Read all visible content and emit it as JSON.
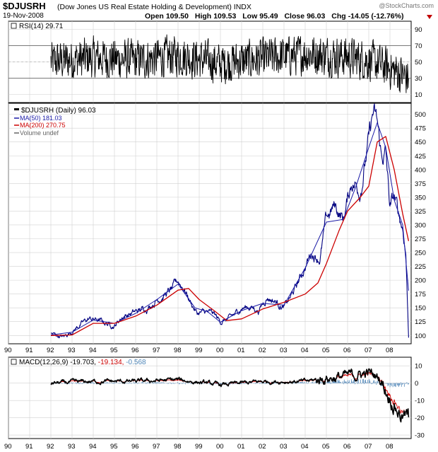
{
  "header": {
    "ticker": "$DJUSRH",
    "description": "(Dow Jones US Real Estate Holding & Development)  INDX",
    "date": "19-Nov-2008",
    "open_label": "Open",
    "open": "109.50",
    "high_label": "High",
    "high": "109.53",
    "low_label": "Low",
    "low": "95.49",
    "close_label": "Close",
    "close": "96.03",
    "chg_label": "Chg",
    "chg": "-14.05 (-12.76%)",
    "watermark": "@StockCharts.com"
  },
  "colors": {
    "price": "#000080",
    "ma50": "#1a1aa6",
    "ma200": "#cc0000",
    "macd_line": "#000000",
    "signal_line": "#cc0000",
    "histogram": "#4f86b8",
    "grid": "#d0d0d0",
    "arrow": "#c00000"
  },
  "chart_data": [
    {
      "type": "line",
      "panel": "RSI",
      "label": "RSI(14) 29.71",
      "ylim": [
        0,
        100
      ],
      "y_ticks": [
        10,
        30,
        50,
        70,
        90
      ],
      "reference_lines": [
        30,
        70
      ],
      "x": [
        1992.0,
        1994.0,
        1996.0,
        1998.0,
        2000.0,
        2002.0,
        2004.0,
        2006.0,
        2007.0,
        2008.0,
        2008.88
      ],
      "values": [
        50,
        55,
        52,
        58,
        48,
        54,
        60,
        56,
        52,
        42,
        29.71
      ]
    },
    {
      "type": "line",
      "panel": "Price",
      "title": "$DJUSRH (Daily) 96.03",
      "ylim": [
        85,
        520
      ],
      "y_ticks": [
        100,
        125,
        150,
        175,
        200,
        225,
        250,
        275,
        300,
        325,
        350,
        375,
        400,
        425,
        450,
        475,
        500
      ],
      "x_ticks": [
        "90",
        "91",
        "92",
        "93",
        "94",
        "95",
        "96",
        "97",
        "98",
        "99",
        "00",
        "01",
        "02",
        "03",
        "04",
        "05",
        "06",
        "07",
        "08"
      ],
      "legend": [
        "$DJUSRH (Daily) 96.03",
        "MA(50) 181.03",
        "MA(200) 270.75",
        "Volume undef"
      ],
      "series": [
        {
          "name": "$DJUSRH (Daily) 96.03",
          "x": [
            1992.0,
            1992.3,
            1992.6,
            1993.0,
            1993.4,
            1993.8,
            1994.2,
            1994.6,
            1995.0,
            1995.4,
            1995.8,
            1996.2,
            1996.6,
            1997.0,
            1997.4,
            1997.7,
            1998.0,
            1998.3,
            1998.6,
            1998.9,
            1999.3,
            1999.7,
            2000.0,
            2000.4,
            2000.7,
            2001.0,
            2001.4,
            2001.8,
            2002.2,
            2002.6,
            2003.0,
            2003.3,
            2003.6,
            2004.0,
            2004.3,
            2004.7,
            2005.0,
            2005.4,
            2005.8,
            2006.2,
            2006.6,
            2007.0,
            2007.2,
            2007.4,
            2007.6,
            2007.8,
            2008.0,
            2008.2,
            2008.4,
            2008.6,
            2008.75,
            2008.88
          ],
          "values": [
            103,
            100,
            97,
            108,
            120,
            130,
            128,
            122,
            118,
            135,
            140,
            145,
            152,
            165,
            175,
            182,
            198,
            185,
            160,
            140,
            142,
            138,
            125,
            130,
            138,
            150,
            152,
            145,
            170,
            162,
            150,
            168,
            190,
            225,
            250,
            240,
            310,
            335,
            310,
            380,
            365,
            450,
            500,
            480,
            420,
            430,
            330,
            350,
            320,
            295,
            250,
            96.03
          ]
        },
        {
          "name": "MA(50) 181.03",
          "x": [
            1992.0,
            1993.0,
            1994.0,
            1995.0,
            1996.0,
            1997.0,
            1998.0,
            1998.8,
            1999.4,
            2000.0,
            2001.0,
            2002.0,
            2003.0,
            2004.0,
            2005.0,
            2005.8,
            2006.4,
            2007.0,
            2007.4,
            2007.8,
            2008.2,
            2008.6,
            2008.88
          ],
          "values": [
            101,
            106,
            128,
            122,
            140,
            165,
            193,
            150,
            143,
            124,
            145,
            158,
            155,
            222,
            305,
            310,
            370,
            440,
            485,
            440,
            345,
            300,
            181.03
          ]
        },
        {
          "name": "MA(200) 270.75",
          "x": [
            1992.0,
            1993.0,
            1994.0,
            1995.0,
            1996.0,
            1997.0,
            1998.0,
            1998.5,
            1999.0,
            1999.7,
            2000.3,
            2001.0,
            2002.0,
            2003.0,
            2004.0,
            2004.6,
            2005.0,
            2005.6,
            2006.0,
            2006.6,
            2007.0,
            2007.4,
            2007.8,
            2008.2,
            2008.6,
            2008.88
          ],
          "values": [
            100,
            101,
            122,
            122,
            135,
            155,
            182,
            185,
            165,
            145,
            127,
            130,
            148,
            160,
            175,
            195,
            230,
            290,
            325,
            350,
            370,
            450,
            460,
            400,
            320,
            270.75
          ]
        }
      ]
    },
    {
      "type": "line",
      "panel": "MACD",
      "label": "MACD(12,26,9)",
      "values_text": [
        "-19.703",
        "-19.134",
        "-0.568"
      ],
      "ylim": [
        -32,
        15
      ],
      "y_ticks": [
        -30,
        -20,
        -10,
        0,
        10
      ],
      "x_ticks": [
        "90",
        "91",
        "92",
        "93",
        "94",
        "95",
        "96",
        "97",
        "98",
        "99",
        "00",
        "01",
        "02",
        "03",
        "04",
        "05",
        "06",
        "07",
        "08"
      ],
      "series": [
        {
          "name": "MACD",
          "x": [
            1992.0,
            1994.0,
            1996.0,
            1998.0,
            2000.0,
            2002.0,
            2004.0,
            2005.0,
            2006.0,
            2007.0,
            2007.5,
            2008.0,
            2008.5,
            2008.88
          ],
          "values": [
            0,
            1,
            1,
            2,
            -1,
            1,
            1,
            3,
            4,
            6,
            3,
            -8,
            -18,
            -19.703
          ]
        },
        {
          "name": "Signal",
          "x": [
            1992.0,
            1994.0,
            1996.0,
            1998.0,
            2000.0,
            2002.0,
            2004.0,
            2005.0,
            2006.0,
            2007.0,
            2007.5,
            2008.0,
            2008.5,
            2008.88
          ],
          "values": [
            0,
            1,
            1,
            1.5,
            -0.8,
            0.8,
            1,
            2.5,
            3.5,
            5,
            3.5,
            -6,
            -15,
            -19.134
          ]
        },
        {
          "name": "Histogram",
          "x": [
            1992.0,
            1996.0,
            2000.0,
            2004.0,
            2006.0,
            2007.0,
            2008.0,
            2008.88
          ],
          "values": [
            0,
            0.2,
            -0.2,
            0.3,
            0.8,
            1,
            -1.5,
            -0.568
          ]
        }
      ]
    }
  ]
}
